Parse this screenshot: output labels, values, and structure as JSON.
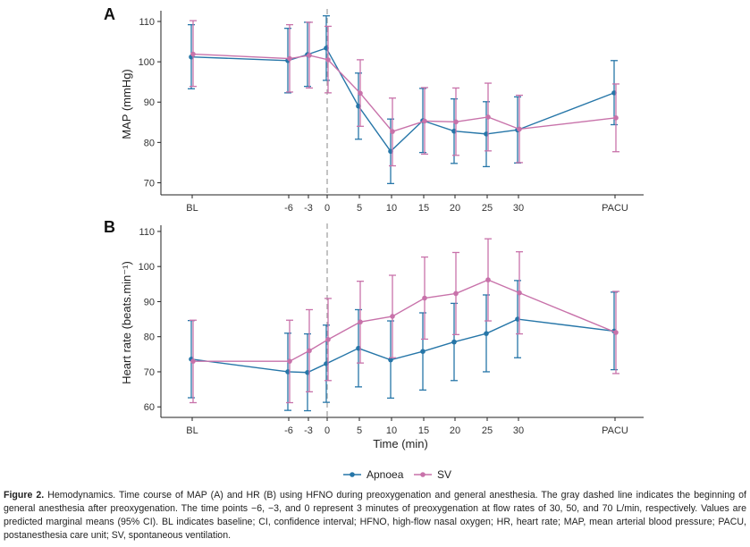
{
  "colors": {
    "apnoea": "#2676a8",
    "sv": "#c872aa",
    "dashed_line": "#aaaaaa"
  },
  "chart_data": [
    {
      "type": "line",
      "panel": "A",
      "ylabel": "MAP (mmHg)",
      "xlabel": "",
      "categories": [
        "BL",
        "-6",
        "-3",
        "0",
        "5",
        "10",
        "15",
        "20",
        "25",
        "30",
        "PACU"
      ],
      "yticks": [
        70,
        80,
        90,
        100,
        110
      ],
      "ylim": [
        67,
        112
      ],
      "series": [
        {
          "name": "Apnoea",
          "values": [
            101.2,
            100.3,
            101.8,
            103.4,
            89.0,
            77.8,
            85.4,
            82.8,
            82.1,
            83.1,
            92.3
          ],
          "lower": [
            93.3,
            92.3,
            93.9,
            95.4,
            80.8,
            69.8,
            77.5,
            74.8,
            74.0,
            74.9,
            84.4
          ],
          "upper": [
            109.2,
            108.3,
            109.8,
            111.4,
            97.2,
            85.8,
            93.4,
            90.8,
            90.1,
            91.3,
            100.3
          ]
        },
        {
          "name": "SV",
          "values": [
            101.9,
            100.8,
            101.6,
            100.5,
            92.2,
            82.7,
            85.3,
            85.1,
            86.3,
            83.3,
            86.1
          ],
          "lower": [
            93.9,
            92.5,
            93.5,
            92.3,
            84.0,
            74.2,
            77.1,
            76.8,
            77.9,
            75.0,
            77.7
          ],
          "upper": [
            110.2,
            109.2,
            109.8,
            108.8,
            100.5,
            91.0,
            93.6,
            93.5,
            94.7,
            91.7,
            94.5
          ]
        }
      ]
    },
    {
      "type": "line",
      "panel": "B",
      "ylabel": "Heart rate (beats.min⁻¹)",
      "xlabel": "Time (min)",
      "categories": [
        "BL",
        "-6",
        "-3",
        "0",
        "5",
        "10",
        "15",
        "20",
        "25",
        "30",
        "PACU"
      ],
      "yticks": [
        60,
        70,
        80,
        90,
        100,
        110
      ],
      "ylim": [
        57,
        111
      ],
      "series": [
        {
          "name": "Apnoea",
          "values": [
            73.6,
            70.0,
            69.8,
            72.3,
            76.7,
            73.4,
            75.8,
            78.5,
            80.9,
            85.0,
            81.6
          ],
          "lower": [
            62.6,
            59.0,
            58.9,
            61.3,
            65.7,
            62.5,
            64.8,
            67.5,
            70.0,
            74.0,
            70.6
          ],
          "upper": [
            84.6,
            81.0,
            80.8,
            83.3,
            87.7,
            84.5,
            86.8,
            89.5,
            91.9,
            96.0,
            92.7
          ]
        },
        {
          "name": "SV",
          "values": [
            73.0,
            73.0,
            76.0,
            79.2,
            84.2,
            85.8,
            91.0,
            92.3,
            96.2,
            92.5,
            81.2
          ],
          "lower": [
            61.2,
            61.2,
            64.3,
            67.5,
            72.5,
            74.0,
            79.3,
            80.6,
            84.5,
            80.8,
            69.5
          ],
          "upper": [
            84.7,
            84.7,
            87.7,
            90.9,
            95.8,
            97.5,
            102.7,
            104.0,
            107.9,
            104.2,
            92.9
          ]
        }
      ]
    }
  ],
  "legend": [
    {
      "label": "Apnoea",
      "color": "#2676a8"
    },
    {
      "label": "SV",
      "color": "#c872aa"
    }
  ],
  "caption": {
    "lead": "Figure 2.",
    "text": " Hemodynamics. Time course of MAP (A) and HR (B) using HFNO during preoxygenation and general anesthesia. The gray dashed line indicates the beginning of general anesthesia after preoxygenation. The time points −6, −3, and 0 represent 3 minutes of preoxygenation at flow rates of 30, 50, and 70 L/min, respectively. Values are predicted marginal means (95% CI). BL indicates baseline; CI, confidence interval; HFNO, high-flow nasal oxygen; HR, heart rate; MAP, mean arterial blood pressure; PACU, postanesthesia care unit; SV, spontaneous ventilation."
  }
}
